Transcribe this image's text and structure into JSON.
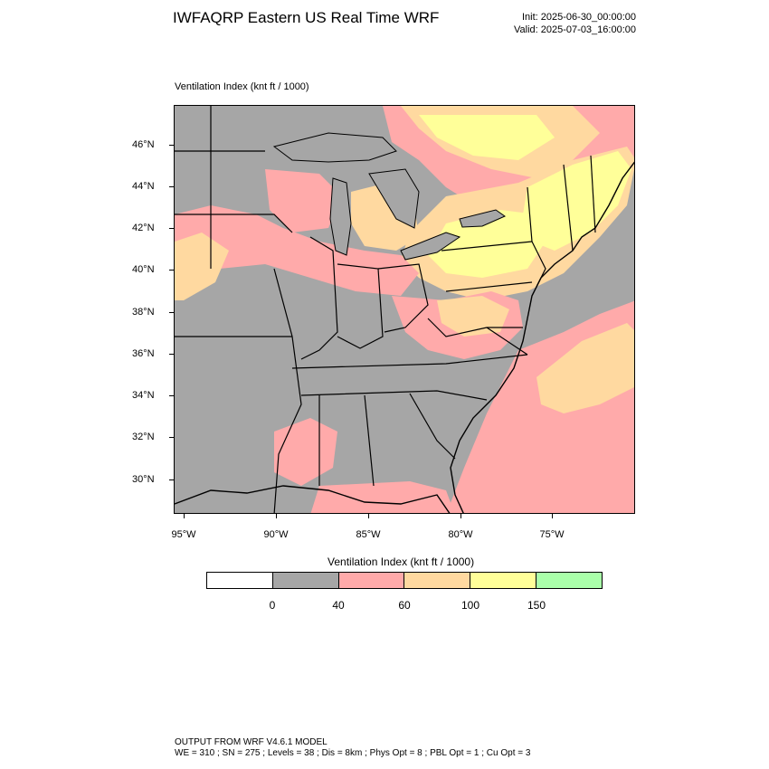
{
  "header": {
    "title": "IWFAQRP Eastern US Real Time WRF",
    "init": "Init: 2025-06-30_00:00:00",
    "valid": "Valid: 2025-07-03_16:00:00"
  },
  "map": {
    "field_label": "Ventilation Index   (knt ft / 1000)",
    "lat_labels": [
      "46°N",
      "44°N",
      "42°N",
      "40°N",
      "38°N",
      "36°N",
      "34°N",
      "32°N",
      "30°N"
    ],
    "lon_labels": [
      "95°W",
      "90°W",
      "85°W",
      "80°W",
      "75°W"
    ],
    "colors": {
      "land_default": "#a6a6a6",
      "water": "#a6a6a6",
      "class_40_60": "#ffaaaa",
      "class_60_100": "#ffd9a0",
      "class_100_150": "#ffff99",
      "boundary": "#000000"
    }
  },
  "legend": {
    "title": "Ventilation Index  (knt ft / 1000)",
    "bins": [
      {
        "color": "#ffffff"
      },
      {
        "color": "#a6a6a6"
      },
      {
        "color": "#ffaaaa"
      },
      {
        "color": "#ffd9a0"
      },
      {
        "color": "#ffff99"
      },
      {
        "color": "#aaffaa"
      }
    ],
    "tick_labels": [
      "0",
      "40",
      "60",
      "100",
      "150"
    ]
  },
  "footer": {
    "line1": "OUTPUT FROM WRF V4.6.1 MODEL",
    "line2": "WE = 310 ; SN = 275 ; Levels = 38 ; Dis = 8km ; Phys Opt = 8 ; PBL Opt = 1 ; Cu Opt = 3"
  }
}
